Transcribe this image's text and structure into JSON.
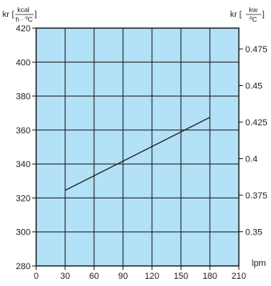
{
  "chart_data": {
    "type": "line",
    "title": "",
    "x": {
      "label": "lpm",
      "ticks": [
        0,
        30,
        60,
        90,
        120,
        150,
        180,
        210
      ],
      "range": [
        0,
        210
      ]
    },
    "y_left": {
      "label": {
        "prefix": "kr [",
        "numerator": "kcal",
        "denominator": "h · ºC",
        "suffix": "]"
      },
      "ticks": [
        280,
        300,
        320,
        340,
        360,
        380,
        400,
        420
      ],
      "range": [
        280,
        420
      ]
    },
    "y_right": {
      "label": {
        "prefix": "kr [",
        "numerator": "kw",
        "denominator": "ºC",
        "suffix": "]"
      },
      "ticks": [
        0.35,
        0.375,
        0.4,
        0.425,
        0.45,
        0.475
      ],
      "tick_labels": [
        "0.35",
        "0.375",
        "0.4",
        "0.425",
        "0.45",
        "0.475"
      ]
    },
    "series": [
      {
        "points": [
          [
            30,
            324.5
          ],
          [
            180,
            367.5
          ]
        ]
      }
    ],
    "grid": true,
    "colors": {
      "plot_bg": "#b3e1f7",
      "grid": "#1a1a1a",
      "line": "#1a1a1a"
    }
  }
}
